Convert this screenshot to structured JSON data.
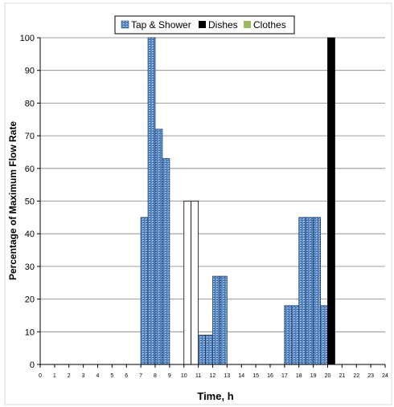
{
  "chart_data": {
    "type": "bar",
    "title": "",
    "xlabel": "Time, h",
    "ylabel": "Percentage of Maximum Flow Rate",
    "xlim": [
      0,
      24
    ],
    "ylim": [
      0,
      100
    ],
    "x_ticks": [
      "0",
      "1",
      "2",
      "3",
      "4",
      "5",
      "6",
      "7",
      "8",
      "9",
      "10",
      "11",
      "12",
      "13",
      "14",
      "15",
      "16",
      "17",
      "18",
      "19",
      "20",
      "21",
      "22",
      "23",
      "24"
    ],
    "y_ticks": [
      "0",
      "10",
      "20",
      "30",
      "40",
      "50",
      "60",
      "70",
      "80",
      "90",
      "100"
    ],
    "grid": "horizontal",
    "legend_position": "top-center",
    "series": [
      {
        "name": "Tap & Shower",
        "color": "#4f81bd",
        "pattern": "textured",
        "bars": [
          {
            "start": 7.0,
            "end": 7.5,
            "value": 45
          },
          {
            "start": 7.5,
            "end": 8.0,
            "value": 100
          },
          {
            "start": 8.0,
            "end": 8.5,
            "value": 72
          },
          {
            "start": 8.5,
            "end": 9.0,
            "value": 63
          },
          {
            "start": 11.0,
            "end": 11.5,
            "value": 9
          },
          {
            "start": 11.5,
            "end": 12.0,
            "value": 9
          },
          {
            "start": 12.0,
            "end": 12.5,
            "value": 27
          },
          {
            "start": 12.5,
            "end": 13.0,
            "value": 27
          },
          {
            "start": 17.0,
            "end": 17.5,
            "value": 18
          },
          {
            "start": 17.5,
            "end": 18.0,
            "value": 18
          },
          {
            "start": 18.0,
            "end": 18.5,
            "value": 45
          },
          {
            "start": 18.5,
            "end": 19.0,
            "value": 45
          },
          {
            "start": 19.0,
            "end": 19.5,
            "value": 45
          },
          {
            "start": 19.5,
            "end": 20.0,
            "value": 18
          }
        ]
      },
      {
        "name": "Dishes",
        "color": "#000000",
        "bars": [
          {
            "start": 20.0,
            "end": 20.5,
            "value": 100
          }
        ]
      },
      {
        "name": "Clothes",
        "color": "#9bbb59",
        "bars": [
          {
            "start": 10.0,
            "end": 10.5,
            "value": 50
          },
          {
            "start": 10.5,
            "end": 11.0,
            "value": 50
          }
        ]
      }
    ]
  }
}
